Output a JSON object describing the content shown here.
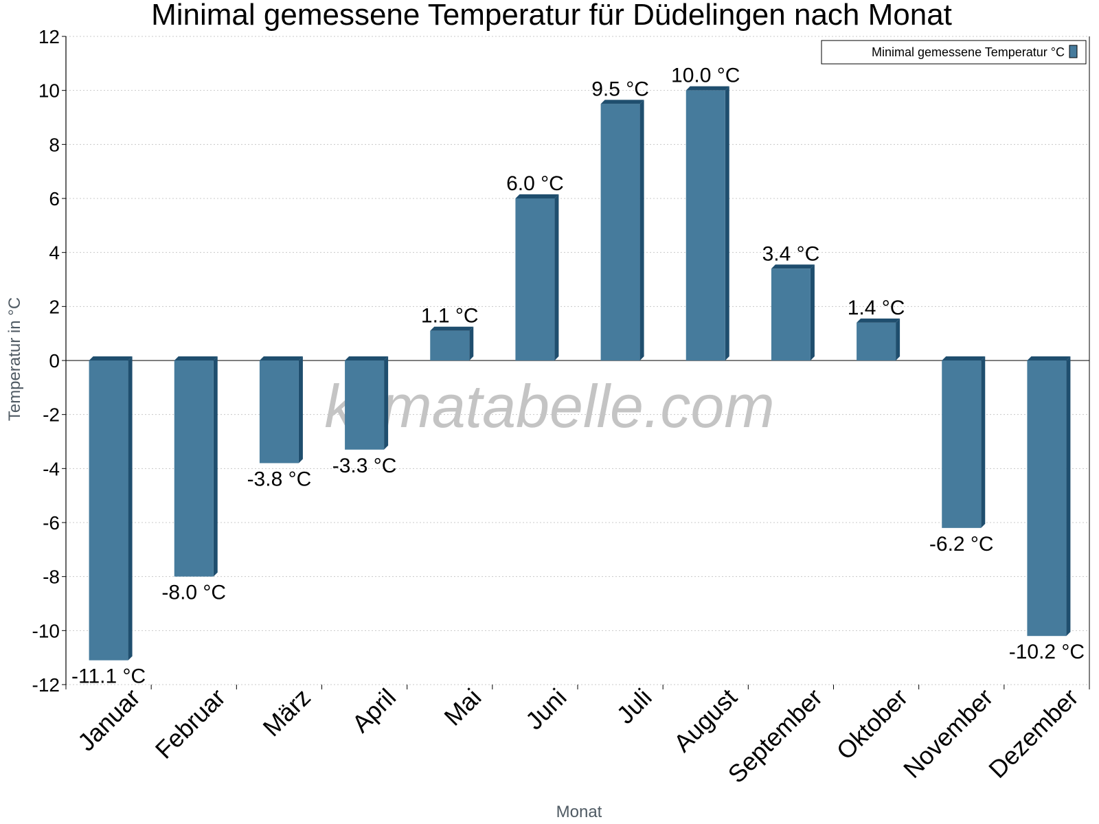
{
  "chart_data": {
    "type": "bar",
    "title": "Minimal gemessene Temperatur für Düdelingen nach Monat",
    "xlabel": "Monat",
    "ylabel": "Temperatur in °C",
    "categories": [
      "Januar",
      "Februar",
      "März",
      "April",
      "Mai",
      "Juni",
      "Juli",
      "August",
      "September",
      "Oktober",
      "November",
      "Dezember"
    ],
    "series": [
      {
        "name": "Minimal gemessene Temperatur °C",
        "values": [
          -11.1,
          -8.0,
          -3.8,
          -3.3,
          1.1,
          6.0,
          9.5,
          10.0,
          3.4,
          1.4,
          -6.2,
          -10.2
        ],
        "labels": [
          "-11.1 °C",
          "-8.0 °C",
          "-3.8 °C",
          "-3.3 °C",
          "1.1 °C",
          "6.0 °C",
          "9.5 °C",
          "10.0 °C",
          "3.4 °C",
          "1.4 °C",
          "-6.2 °C",
          "-10.2 °C"
        ],
        "color": "#467b9c",
        "side_color": "#1f4e6e"
      }
    ],
    "ylim": [
      -12,
      12
    ],
    "yticks": [
      12,
      10,
      8,
      6,
      4,
      2,
      0,
      -2,
      -4,
      -6,
      -8,
      -10,
      -12
    ],
    "grid": true,
    "legend_position": "top-right",
    "watermark": "klimatabelle.com"
  }
}
